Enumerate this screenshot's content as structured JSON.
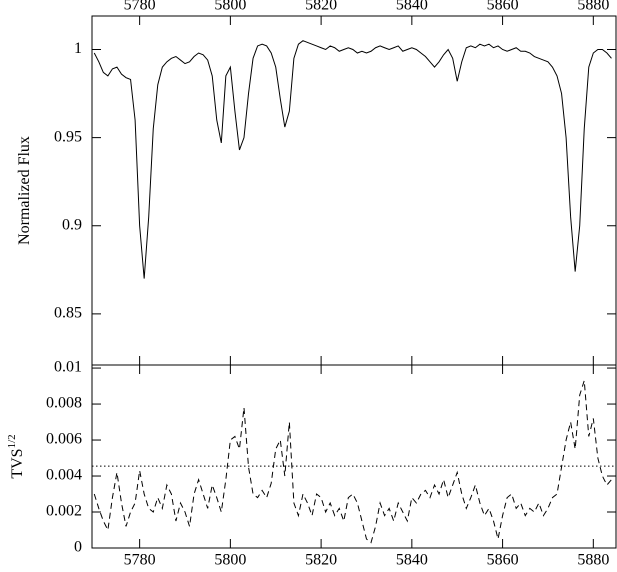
{
  "chart_data": [
    {
      "type": "line",
      "y_label": "Normalized Flux",
      "x": [
        5770,
        5771,
        5772,
        5773,
        5774,
        5775,
        5776,
        5777,
        5778,
        5779,
        5780,
        5781,
        5782,
        5783,
        5784,
        5785,
        5786,
        5787,
        5788,
        5789,
        5790,
        5791,
        5792,
        5793,
        5794,
        5795,
        5796,
        5797,
        5798,
        5799,
        5800,
        5801,
        5802,
        5803,
        5804,
        5805,
        5806,
        5807,
        5808,
        5809,
        5810,
        5811,
        5812,
        5813,
        5814,
        5815,
        5816,
        5817,
        5818,
        5819,
        5820,
        5821,
        5822,
        5823,
        5824,
        5825,
        5826,
        5827,
        5828,
        5829,
        5830,
        5831,
        5832,
        5833,
        5834,
        5835,
        5836,
        5837,
        5838,
        5839,
        5840,
        5841,
        5842,
        5843,
        5844,
        5845,
        5846,
        5847,
        5848,
        5849,
        5850,
        5851,
        5852,
        5853,
        5854,
        5855,
        5856,
        5857,
        5858,
        5859,
        5860,
        5861,
        5862,
        5863,
        5864,
        5865,
        5866,
        5867,
        5868,
        5869,
        5870,
        5871,
        5872,
        5873,
        5874,
        5875,
        5876,
        5877,
        5878,
        5879,
        5880,
        5881,
        5882,
        5883,
        5884
      ],
      "series": [
        {
          "color": "#000000",
          "linestyle": "solid",
          "values": [
            0.998,
            0.993,
            0.987,
            0.985,
            0.989,
            0.99,
            0.986,
            0.984,
            0.983,
            0.96,
            0.9,
            0.87,
            0.905,
            0.955,
            0.98,
            0.99,
            0.993,
            0.995,
            0.996,
            0.994,
            0.992,
            0.993,
            0.996,
            0.998,
            0.997,
            0.994,
            0.985,
            0.96,
            0.947,
            0.985,
            0.99,
            0.965,
            0.943,
            0.95,
            0.975,
            0.995,
            1.002,
            1.003,
            1.002,
            0.998,
            0.99,
            0.972,
            0.956,
            0.965,
            0.995,
            1.003,
            1.005,
            1.004,
            1.003,
            1.002,
            1.001,
            1.0,
            1.002,
            1.001,
            0.999,
            1.0,
            1.001,
            1.0,
            0.998,
            0.999,
            0.998,
            0.999,
            1.001,
            1.002,
            1.001,
            1.0,
            1.001,
            1.002,
            0.999,
            1.0,
            1.001,
            1.0,
            0.998,
            0.996,
            0.993,
            0.99,
            0.993,
            0.997,
            1.0,
            0.995,
            0.982,
            0.993,
            1.001,
            1.002,
            1.001,
            1.003,
            1.002,
            1.003,
            1.001,
            1.002,
            1.0,
            0.999,
            1.0,
            1.001,
            0.999,
            0.999,
            0.998,
            0.996,
            0.995,
            0.994,
            0.993,
            0.99,
            0.985,
            0.975,
            0.95,
            0.905,
            0.874,
            0.9,
            0.955,
            0.99,
            0.998,
            1.0,
            1.0,
            0.998,
            0.995
          ]
        }
      ],
      "xlim": [
        5769.5,
        5885
      ],
      "ylim": [
        0.821,
        1.019
      ],
      "xticks": [
        5780,
        5800,
        5820,
        5840,
        5860,
        5880
      ],
      "yticks": [
        0.85,
        0.9,
        0.95,
        1
      ],
      "xtick_labels": "top"
    },
    {
      "type": "line",
      "y_label": "TVS",
      "y_label_sup": "1/2",
      "x": [
        5770,
        5771,
        5772,
        5773,
        5774,
        5775,
        5776,
        5777,
        5778,
        5779,
        5780,
        5781,
        5782,
        5783,
        5784,
        5785,
        5786,
        5787,
        5788,
        5789,
        5790,
        5791,
        5792,
        5793,
        5794,
        5795,
        5796,
        5797,
        5798,
        5799,
        5800,
        5801,
        5802,
        5803,
        5804,
        5805,
        5806,
        5807,
        5808,
        5809,
        5810,
        5811,
        5812,
        5813,
        5814,
        5815,
        5816,
        5817,
        5818,
        5819,
        5820,
        5821,
        5822,
        5823,
        5824,
        5825,
        5826,
        5827,
        5828,
        5829,
        5830,
        5831,
        5832,
        5833,
        5834,
        5835,
        5836,
        5837,
        5838,
        5839,
        5840,
        5841,
        5842,
        5843,
        5844,
        5845,
        5846,
        5847,
        5848,
        5849,
        5850,
        5851,
        5852,
        5853,
        5854,
        5855,
        5856,
        5857,
        5858,
        5859,
        5860,
        5861,
        5862,
        5863,
        5864,
        5865,
        5866,
        5867,
        5868,
        5869,
        5870,
        5871,
        5872,
        5873,
        5874,
        5875,
        5876,
        5877,
        5878,
        5879,
        5880,
        5881,
        5882,
        5883,
        5884
      ],
      "series": [
        {
          "color": "#000000",
          "linestyle": "dashed",
          "values": [
            0.003,
            0.0022,
            0.0015,
            0.001,
            0.0028,
            0.0042,
            0.0025,
            0.0012,
            0.002,
            0.0025,
            0.0043,
            0.003,
            0.0022,
            0.002,
            0.0028,
            0.0022,
            0.0035,
            0.003,
            0.0015,
            0.0025,
            0.002,
            0.0012,
            0.003,
            0.0038,
            0.003,
            0.0022,
            0.0035,
            0.0028,
            0.002,
            0.0038,
            0.006,
            0.0062,
            0.0055,
            0.0078,
            0.0045,
            0.003,
            0.0028,
            0.0032,
            0.0028,
            0.0036,
            0.0055,
            0.006,
            0.004,
            0.007,
            0.0025,
            0.0018,
            0.003,
            0.0025,
            0.0018,
            0.003,
            0.0028,
            0.002,
            0.0025,
            0.0018,
            0.0022,
            0.0015,
            0.0028,
            0.003,
            0.0025,
            0.0015,
            0.0005,
            0.0003,
            0.0012,
            0.0025,
            0.0018,
            0.0022,
            0.0015,
            0.0025,
            0.002,
            0.0015,
            0.0028,
            0.0025,
            0.003,
            0.0032,
            0.0028,
            0.0035,
            0.003,
            0.0038,
            0.0028,
            0.0035,
            0.0042,
            0.003,
            0.0022,
            0.0028,
            0.0035,
            0.0025,
            0.0018,
            0.0022,
            0.0015,
            0.0005,
            0.0018,
            0.0028,
            0.003,
            0.0022,
            0.0025,
            0.0018,
            0.0022,
            0.002,
            0.0025,
            0.0018,
            0.0022,
            0.0028,
            0.003,
            0.0045,
            0.006,
            0.007,
            0.0055,
            0.0085,
            0.0093,
            0.0062,
            0.0072,
            0.005,
            0.004,
            0.0035,
            0.0038
          ]
        }
      ],
      "threshold": 0.00455,
      "threshold_style": "dotted",
      "xlim": [
        5769.5,
        5885
      ],
      "ylim": [
        0,
        0.01017
      ],
      "xticks": [
        5780,
        5800,
        5820,
        5840,
        5860,
        5880
      ],
      "yticks": [
        0,
        0.002,
        0.004,
        0.006,
        0.008,
        0.01
      ],
      "xtick_labels": "bottom"
    }
  ]
}
